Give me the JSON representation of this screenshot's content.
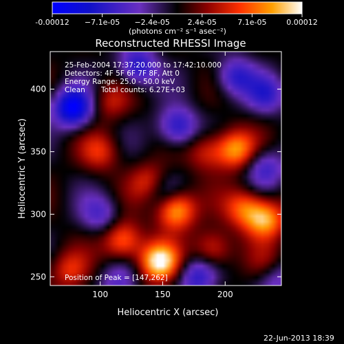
{
  "chart_data": {
    "type": "heatmap",
    "title": "Reconstructed RHESSI Image",
    "xlabel": "Heliocentric X (arcsec)",
    "ylabel": "Heliocentric Y (arcsec)",
    "xlim": [
      60,
      245
    ],
    "ylim": [
      243,
      430
    ],
    "x_ticks": [
      100,
      150,
      200
    ],
    "y_ticks": [
      250,
      300,
      350,
      400
    ],
    "colorbar": {
      "ticks": [
        "-0.00012",
        "−7.1e-05",
        "−2.4e-05",
        "2.4e-05",
        "7.1e-05",
        "0.00012"
      ],
      "units": "(photons cm⁻² s⁻¹ asec⁻²)",
      "min": -0.00012,
      "max": 0.00012
    },
    "info": {
      "time": "25-Feb-2004 17:37:20.000 to 17:42:10.000",
      "detectors": "Detectors: 4F 5F 6F 7F 8F, Att 0",
      "energy": "Energy Range: 25.0 - 50.0 keV",
      "method": "Clean",
      "counts": "Total counts: 6.27E+03"
    },
    "peak_label": "Position of Peak = [147,262]",
    "peak": [
      147,
      262
    ],
    "bright_sources": [
      {
        "x": 147,
        "y": 262,
        "intensity": 0.00012
      },
      {
        "x": 160,
        "y": 304,
        "intensity": 0.00011
      },
      {
        "x": 232,
        "y": 296,
        "intensity": 9.5e-05
      },
      {
        "x": 208,
        "y": 352,
        "intensity": 9e-05
      },
      {
        "x": 118,
        "y": 279,
        "intensity": 8e-05
      },
      {
        "x": 190,
        "y": 272,
        "intensity": 6e-05
      },
      {
        "x": 215,
        "y": 305,
        "intensity": 7e-05
      },
      {
        "x": 100,
        "y": 350,
        "intensity": 5e-05
      },
      {
        "x": 108,
        "y": 390,
        "intensity": 4e-05
      },
      {
        "x": 140,
        "y": 325,
        "intensity": 6e-05
      },
      {
        "x": 185,
        "y": 350,
        "intensity": 5e-05
      },
      {
        "x": 75,
        "y": 255,
        "intensity": 5e-05
      },
      {
        "x": 235,
        "y": 258,
        "intensity": 4e-05
      }
    ],
    "dim_sources": [
      {
        "x": 78,
        "y": 385,
        "intensity": -0.00012
      },
      {
        "x": 130,
        "y": 418,
        "intensity": -8e-05
      },
      {
        "x": 162,
        "y": 370,
        "intensity": -8e-05
      },
      {
        "x": 208,
        "y": 410,
        "intensity": -7e-05
      },
      {
        "x": 150,
        "y": 317,
        "intensity": -5e-05
      },
      {
        "x": 233,
        "y": 396,
        "intensity": -6e-05
      },
      {
        "x": 232,
        "y": 337,
        "intensity": -6e-05
      },
      {
        "x": 100,
        "y": 300,
        "intensity": -5e-05
      },
      {
        "x": 178,
        "y": 250,
        "intensity": -7e-05
      },
      {
        "x": 240,
        "y": 250,
        "intensity": -6e-05
      },
      {
        "x": 115,
        "y": 245,
        "intensity": -5e-05
      }
    ]
  },
  "footer": {
    "date": "22-Jun-2013 18:39"
  }
}
